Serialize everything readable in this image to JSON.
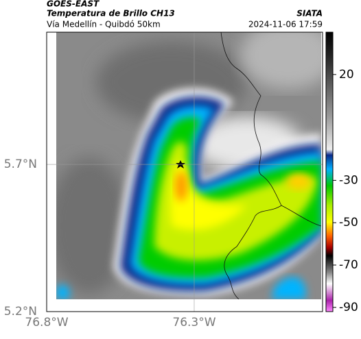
{
  "header": {
    "title": "GOES-EAST",
    "subtitle": "Temperatura de Brillo CH13",
    "region": "Vía Medellín - Quibdó 50km",
    "source": "SIATA",
    "datetime": "2024-11-06 17:59"
  },
  "map": {
    "xlim": [
      -76.8,
      -75.865
    ],
    "ylim": [
      5.2,
      6.149
    ],
    "xticks": [
      {
        "value": -76.8,
        "label": "76.8°W"
      },
      {
        "value": -76.3,
        "label": "76.3°W"
      }
    ],
    "yticks": [
      {
        "value": 5.2,
        "label": "5.2°N"
      },
      {
        "value": 5.7,
        "label": "5.7°N"
      }
    ]
  },
  "colorbar": {
    "lim": [
      -92,
      40
    ],
    "ticks": [
      20,
      -30,
      -50,
      -70,
      -90
    ]
  }
}
